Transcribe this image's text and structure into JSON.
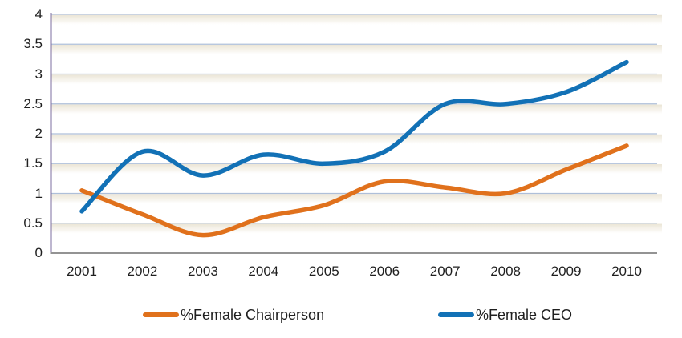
{
  "chart_data": {
    "type": "line",
    "smooth": true,
    "title": "",
    "xlabel": "",
    "ylabel": "",
    "categories": [
      "2001",
      "2002",
      "2003",
      "2004",
      "2005",
      "2006",
      "2007",
      "2008",
      "2009",
      "2010"
    ],
    "series": [
      {
        "name": "%Female Chairperson",
        "color": "#E0711C",
        "values": [
          1.05,
          0.65,
          0.3,
          0.6,
          0.8,
          1.2,
          1.1,
          1.0,
          1.4,
          1.8
        ]
      },
      {
        "name": "%Female CEO",
        "color": "#1271B6",
        "values": [
          0.7,
          1.7,
          1.3,
          1.65,
          1.5,
          1.7,
          2.5,
          2.5,
          2.7,
          3.2
        ]
      }
    ],
    "ylim": [
      0,
      4
    ],
    "ytick_step": 0.5,
    "ytick_labels": [
      "0",
      "0.5",
      "1",
      "1.5",
      "2",
      "2.5",
      "3",
      "3.5",
      "4"
    ],
    "grid": true,
    "legend_position": "bottom"
  },
  "style": {
    "gridline_color": "#AEBFD9",
    "band_color_top": "rgba(231,224,205,0.85)",
    "band_color_mid": "rgba(241,237,226,0.45)",
    "y_axis_color": "#7E6FA0",
    "x_axis_color": "#939393",
    "text_color": "#1f1f1f"
  }
}
